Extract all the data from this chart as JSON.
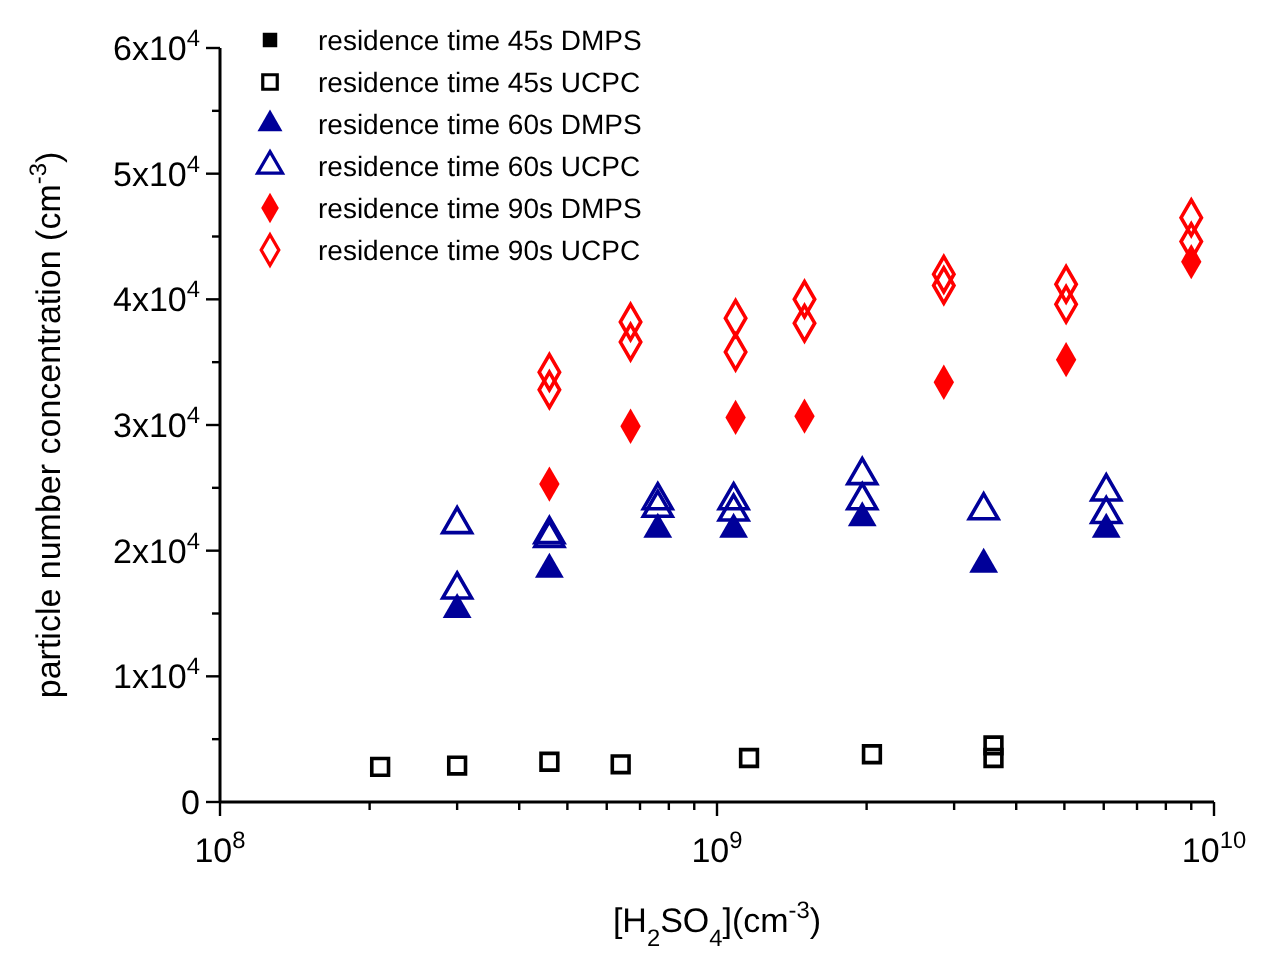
{
  "chart_data": {
    "type": "scatter",
    "xlabel": "[H$_{2}$SO$_{4}$](cm$^{-3}$)",
    "ylabel": "particle number concentration (cm$^{-3}$)",
    "log": "x",
    "xlim": [
      100000000,
      10000000000
    ],
    "ylim": [
      0,
      60000
    ],
    "xticks": [
      {
        "value": 100000000,
        "label": "10$^{8}$"
      },
      {
        "value": 200000000,
        "label": null
      },
      {
        "value": 300000000,
        "label": null
      },
      {
        "value": 400000000,
        "label": null
      },
      {
        "value": 500000000,
        "label": null
      },
      {
        "value": 600000000,
        "label": null
      },
      {
        "value": 700000000,
        "label": null
      },
      {
        "value": 800000000,
        "label": null
      },
      {
        "value": 900000000,
        "label": null
      },
      {
        "value": 1000000000,
        "label": "10$^{9}$"
      },
      {
        "value": 2000000000,
        "label": null
      },
      {
        "value": 3000000000,
        "label": null
      },
      {
        "value": 4000000000,
        "label": null
      },
      {
        "value": 5000000000,
        "label": null
      },
      {
        "value": 6000000000,
        "label": null
      },
      {
        "value": 7000000000,
        "label": null
      },
      {
        "value": 8000000000,
        "label": null
      },
      {
        "value": 9000000000,
        "label": null
      },
      {
        "value": 10000000000,
        "label": "10$^{10}$"
      }
    ],
    "yticks": [
      0,
      {
        "value": 5000,
        "label": null
      },
      {
        "value": 10000,
        "label": "1x10$^{4}$"
      },
      {
        "value": 15000,
        "label": null
      },
      {
        "value": 20000,
        "label": "2x10$^{4}$"
      },
      {
        "value": 25000,
        "label": null
      },
      {
        "value": 30000,
        "label": "3x10$^{4}$"
      },
      {
        "value": 35000,
        "label": null
      },
      {
        "value": 40000,
        "label": "4x10$^{4}$"
      },
      {
        "value": 45000,
        "label": null
      },
      {
        "value": 50000,
        "label": "5x10$^{4}$"
      },
      {
        "value": 55000,
        "label": null
      },
      {
        "value": 60000,
        "label": "6x10$^{4}$"
      }
    ],
    "grid": false,
    "legend": "top left",
    "series": [
      {
        "name": "residence time 45s DMPS",
        "color": "#000000",
        "marker": "square"
      },
      {
        "name": "residence time 45s UCPC",
        "color": "#000000",
        "marker": "square",
        "x": [
          210000000,
          300000000,
          460000000,
          640000000,
          1160000000,
          2050000000,
          3600000000,
          3600000000
        ],
        "values": [
          2800,
          2900,
          3200,
          3000,
          3500,
          3800,
          4500,
          3500
        ]
      },
      {
        "name": "residence time 60s DMPS",
        "color": "#000099",
        "marker": "triangle",
        "x": [
          300000000,
          460000000,
          760000000,
          1080000000,
          1960000000,
          3440000000,
          6070000000
        ],
        "values": [
          15300,
          18500,
          21700,
          21700,
          22600,
          18900,
          21700
        ]
      },
      {
        "name": "residence time 60s UCPC",
        "color": "#000099",
        "marker": "triangle",
        "x": [
          300000000,
          300000000,
          460000000,
          460000000,
          760000000,
          760000000,
          1080000000,
          1080000000,
          1960000000,
          1960000000,
          3440000000,
          6070000000,
          6070000000
        ],
        "values": [
          22100,
          16900,
          21300,
          21000,
          24000,
          23400,
          24000,
          23100,
          26000,
          24000,
          23200,
          24700,
          22900
        ]
      },
      {
        "name": "residence time 90s DMPS",
        "color": "#ff0000",
        "marker": "diamond",
        "x": [
          460000000,
          670000000,
          1090000000,
          1500000000,
          2860000000,
          5040000000,
          9000000000
        ],
        "values": [
          25300,
          29900,
          30600,
          30700,
          33400,
          35200,
          43000
        ]
      },
      {
        "name": "residence time 90s UCPC",
        "color": "#ff0000",
        "marker": "diamond",
        "x": [
          460000000,
          460000000,
          670000000,
          670000000,
          1090000000,
          1090000000,
          1500000000,
          1500000000,
          2860000000,
          2860000000,
          5040000000,
          5040000000,
          9000000000,
          9000000000
        ],
        "values": [
          34200,
          32800,
          38200,
          36600,
          38500,
          35800,
          40000,
          38100,
          42000,
          41100,
          41200,
          39600,
          46500,
          44600
        ]
      }
    ]
  }
}
